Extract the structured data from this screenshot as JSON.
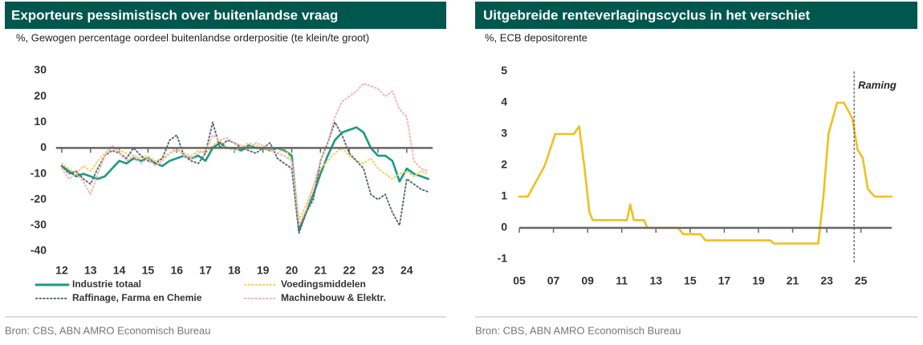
{
  "chart_data": [
    {
      "type": "line",
      "title": "Exporteurs pessimistisch over buitenlandse vraag",
      "subtitle": "%, Gewogen percentage oordeel buitenlandse orderpositie (te klein/te groot)",
      "source": "Bron: CBS, ABN AMRO Economisch Bureau",
      "x": [
        12,
        12.25,
        12.5,
        12.75,
        13,
        13.25,
        13.5,
        13.75,
        14,
        14.25,
        14.5,
        14.75,
        15,
        15.25,
        15.5,
        15.75,
        16,
        16.25,
        16.5,
        16.75,
        17,
        17.25,
        17.5,
        17.75,
        18,
        18.25,
        18.5,
        18.75,
        19,
        19.25,
        19.5,
        19.75,
        20,
        20.25,
        20.5,
        20.75,
        21,
        21.25,
        21.5,
        21.75,
        22,
        22.25,
        22.5,
        22.75,
        23,
        23.25,
        23.5,
        23.75,
        24,
        24.25,
        24.5,
        24.75
      ],
      "series": [
        {
          "name": "Industrie totaal",
          "color": "#1a9a84",
          "dash": "solid",
          "values": [
            -7,
            -9,
            -11,
            -10,
            -11,
            -12,
            -11,
            -8,
            -5,
            -6,
            -4,
            -5,
            -4,
            -6,
            -7,
            -5,
            -4,
            -3,
            -4,
            -3,
            -5,
            0,
            2,
            0,
            0,
            -1,
            1,
            0,
            0,
            -1,
            0,
            -1,
            -3,
            -32,
            -25,
            -18,
            -10,
            -3,
            3,
            6,
            7,
            8,
            6,
            0,
            -3,
            -3,
            -5,
            -13,
            -8,
            -10,
            -11,
            -12
          ]
        },
        {
          "name": "Voedingsmiddelen",
          "color": "#f5d167",
          "dash": "dotted",
          "values": [
            -6,
            -8,
            -10,
            -7,
            -9,
            -5,
            -2,
            0,
            -1,
            -2,
            -3,
            -4,
            -3,
            -5,
            -4,
            -2,
            -1,
            -2,
            -3,
            -1,
            -2,
            1,
            3,
            0,
            -1,
            0,
            2,
            1,
            0,
            -1,
            -2,
            0,
            -5,
            -28,
            -22,
            -15,
            -8,
            -5,
            -2,
            0,
            -3,
            -5,
            -6,
            -4,
            -8,
            -10,
            -12,
            -10,
            -9,
            -11,
            -9,
            -10
          ]
        },
        {
          "name": "Raffinage, Farma en Chemie",
          "color": "#5a6e73",
          "dash": "dotted",
          "values": [
            -7,
            -10,
            -9,
            -12,
            -14,
            -8,
            -3,
            -1,
            -2,
            -4,
            0,
            -3,
            -5,
            -6,
            -4,
            3,
            5,
            -3,
            -5,
            -6,
            -2,
            10,
            0,
            3,
            2,
            0,
            -1,
            -2,
            0,
            2,
            -4,
            -6,
            -8,
            -33,
            -25,
            -20,
            -5,
            2,
            10,
            5,
            -2,
            -5,
            -8,
            -18,
            -20,
            -18,
            -25,
            -30,
            -12,
            -14,
            -16,
            -17
          ]
        },
        {
          "name": "Machinebouw & Elektr.",
          "color": "#f2b8b0",
          "dash": "dotted",
          "values": [
            -8,
            -12,
            -10,
            -13,
            -18,
            -10,
            -3,
            1,
            -2,
            -5,
            -3,
            -6,
            -4,
            -7,
            -5,
            -2,
            0,
            -3,
            -4,
            -2,
            -1,
            5,
            3,
            4,
            2,
            1,
            0,
            2,
            1,
            0,
            -2,
            -3,
            -5,
            -30,
            -24,
            -15,
            -5,
            2,
            12,
            18,
            20,
            22,
            25,
            24,
            23,
            20,
            22,
            15,
            12,
            -5,
            -8,
            -9
          ]
        }
      ],
      "xlim": [
        11.8,
        24.9
      ],
      "xticks": [
        12,
        13,
        14,
        15,
        16,
        17,
        18,
        19,
        20,
        21,
        22,
        23,
        24
      ],
      "ylim": [
        -40,
        30
      ],
      "yticks": [
        -40,
        -30,
        -20,
        -10,
        0,
        10,
        20,
        30
      ]
    },
    {
      "type": "line",
      "title": "Uitgebreide renteverlagingscyclus in het verschiet",
      "subtitle": "%, ECB depositorente",
      "source": "Bron: CBS, ABN AMRO Economisch Bureau",
      "x": [
        5,
        5.5,
        6.5,
        6.8,
        7.1,
        8.2,
        8.5,
        8.8,
        9.1,
        9.3,
        11.3,
        11.5,
        11.7,
        12,
        12.3,
        12.5,
        14.3,
        14.6,
        15.6,
        15.9,
        19.7,
        19.9,
        22.5,
        22.8,
        23.1,
        23.6,
        24,
        24.5,
        24.8,
        25.1,
        25.4,
        25.8,
        26,
        26.8
      ],
      "values": [
        1,
        1,
        2,
        2.5,
        3,
        3,
        3.25,
        2,
        0.5,
        0.25,
        0.25,
        0.75,
        0.25,
        0.25,
        0.25,
        0,
        0,
        -0.2,
        -0.2,
        -0.4,
        -0.4,
        -0.5,
        -0.5,
        1,
        3,
        4,
        4,
        3.5,
        2.5,
        2.25,
        1.25,
        1,
        1,
        1
      ],
      "color": "#f0c020",
      "annotation": {
        "text": "Raming",
        "x": 24.6
      },
      "xlim": [
        5,
        26.8
      ],
      "xticks": [
        {
          "value": 5,
          "label": "05"
        },
        {
          "value": 7,
          "label": "07"
        },
        {
          "value": 9,
          "label": "09"
        },
        11,
        13,
        15,
        17,
        19,
        21,
        23,
        25
      ],
      "ylim": [
        -1,
        5
      ],
      "yticks": [
        -1,
        0,
        1,
        2,
        3,
        4,
        5
      ]
    }
  ]
}
